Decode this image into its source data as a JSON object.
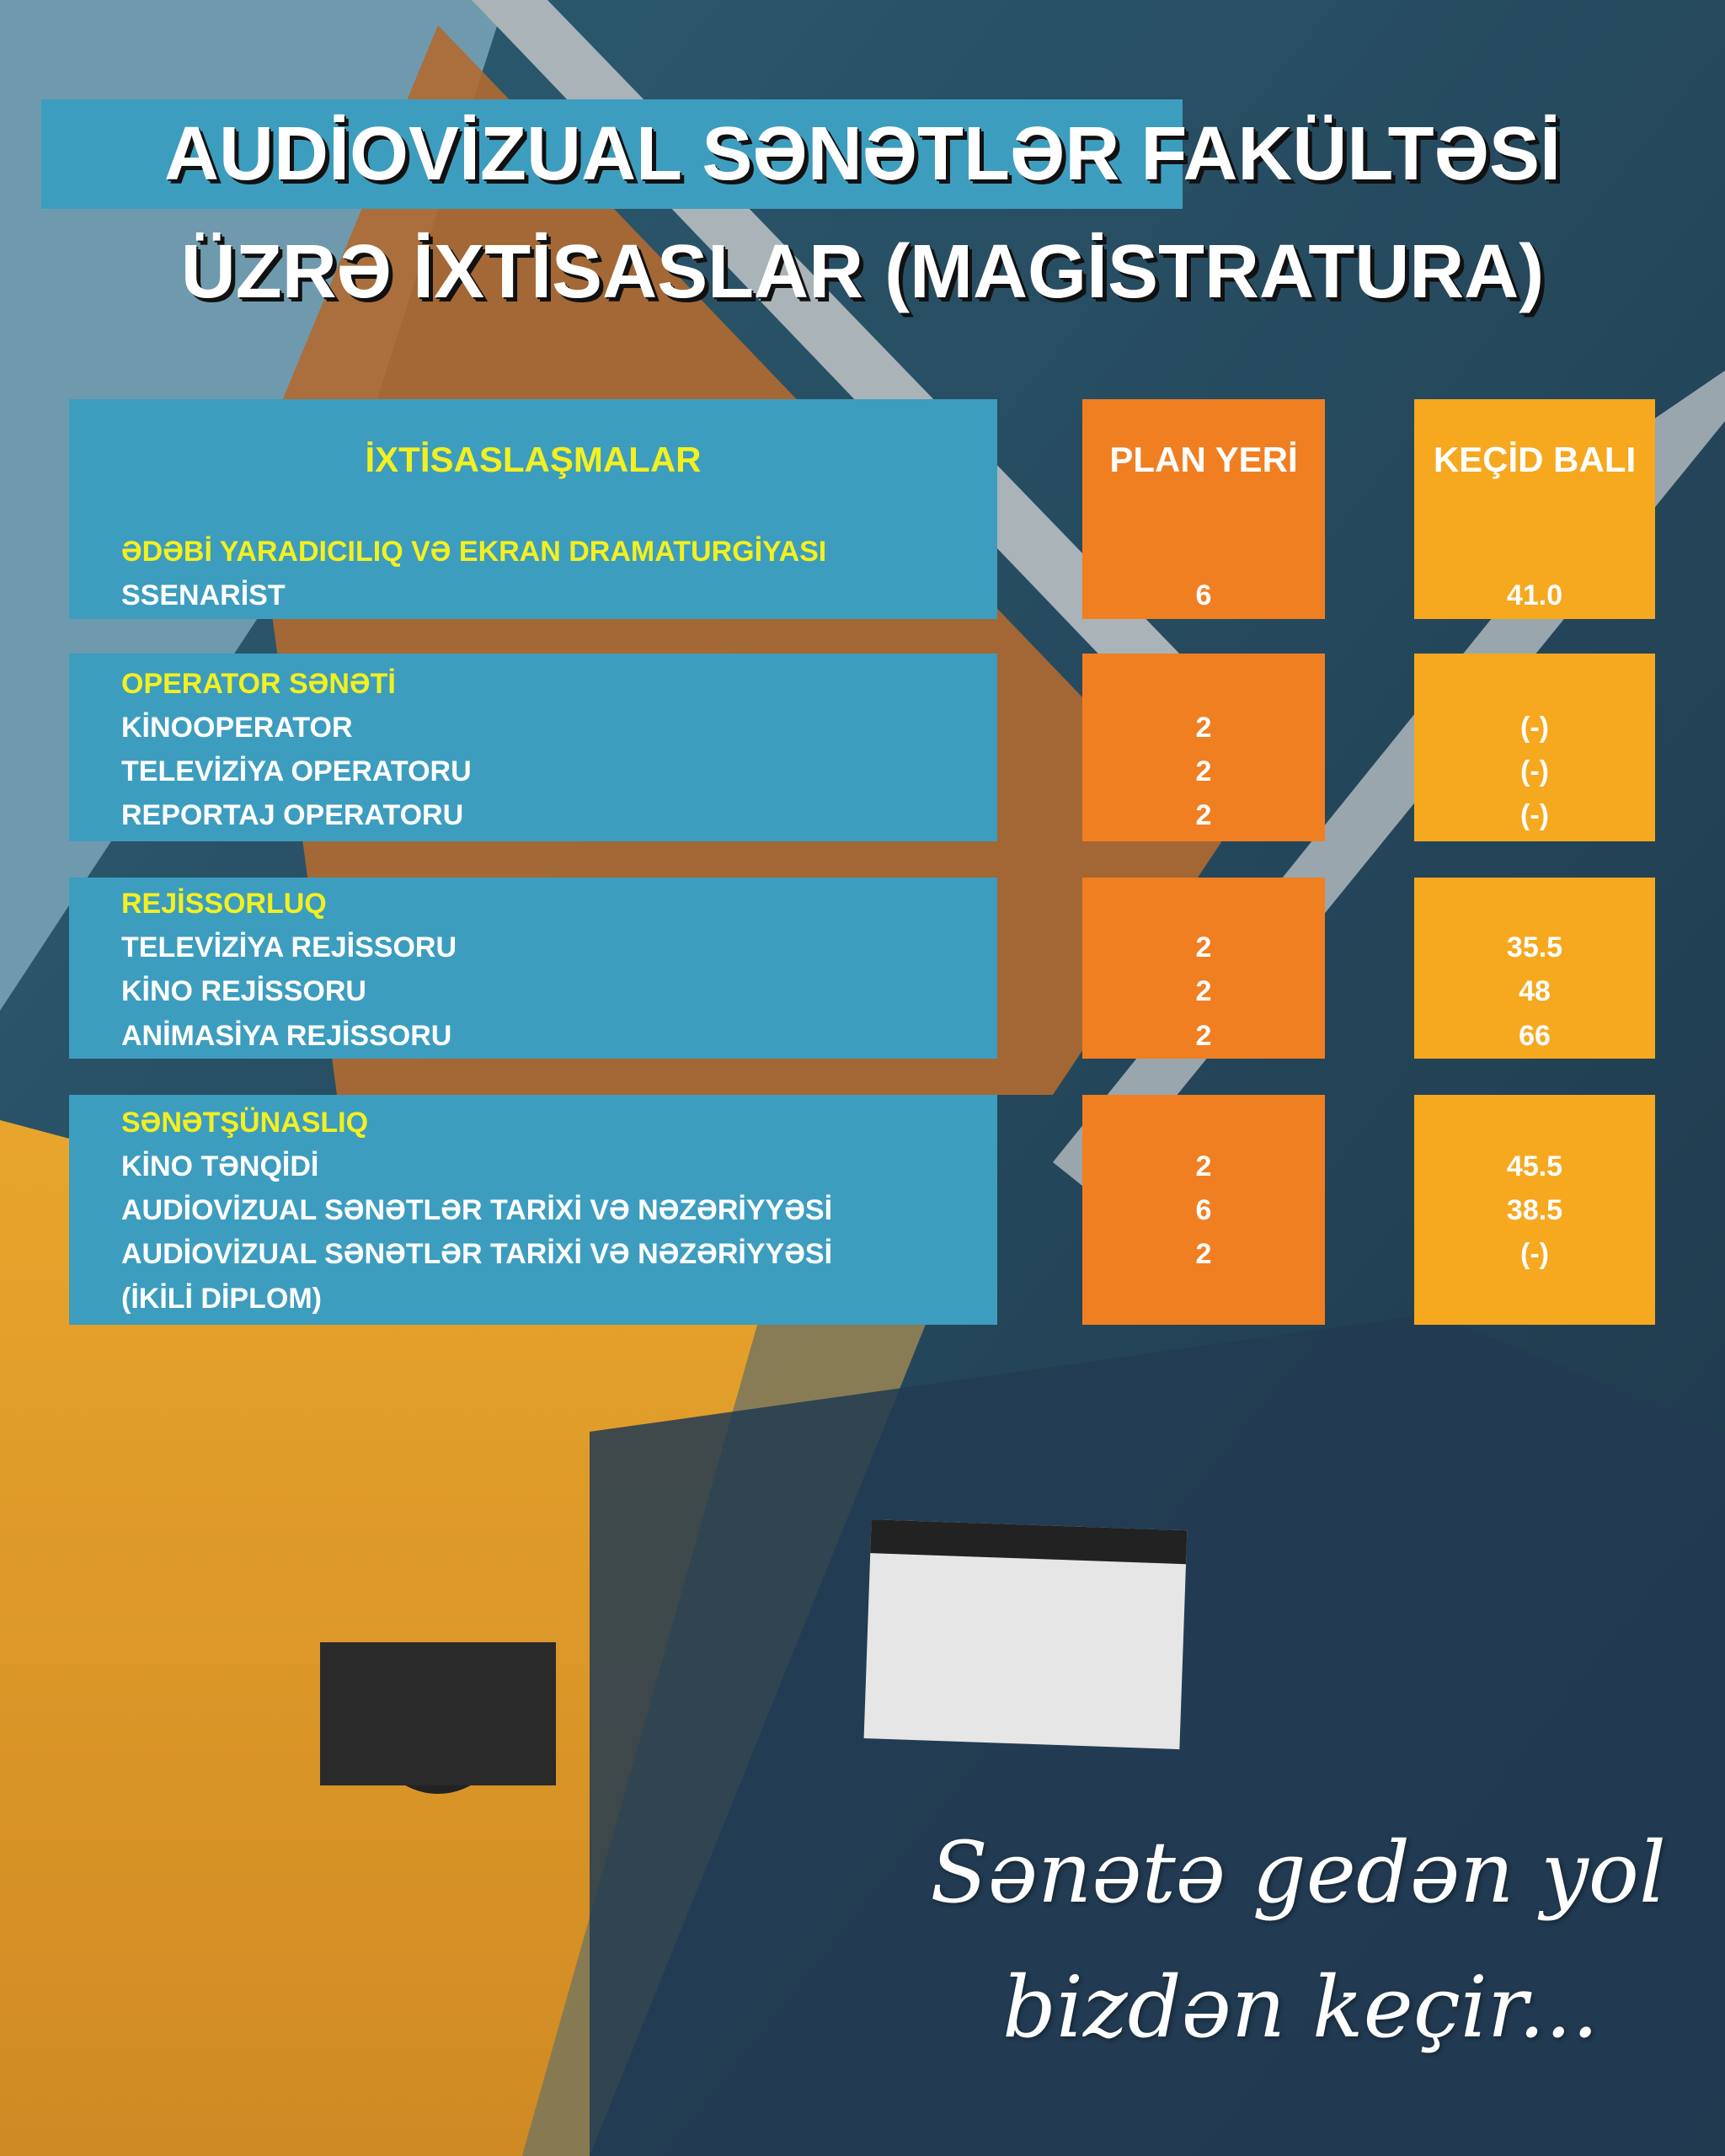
{
  "title": {
    "line1_highlighted": "AUDİOVİZUAL SƏNƏTLƏR",
    "line1_rest": "FAKÜLTƏSİ",
    "line2": "ÜZRƏ İXTİSASLAR (MAGİSTRATURA)"
  },
  "table": {
    "headers": {
      "specialization": "İXTİSASLAŞMALAR",
      "plan": "PLAN YERİ",
      "score": "KEÇİD BALI"
    },
    "groups": [
      {
        "title": "ƏDƏBİ YARADICILIQ VƏ EKRAN DRAMATURGİYASI",
        "rows": [
          {
            "label": "SSENARİST",
            "plan": "6",
            "score": "41.0"
          }
        ]
      },
      {
        "title": "OPERATOR SƏNƏTİ",
        "rows": [
          {
            "label": "KİNOOPERATOR",
            "plan": "2",
            "score": "(-)"
          },
          {
            "label": "TELEVİZİYA OPERATORU",
            "plan": "2",
            "score": "(-)"
          },
          {
            "label": "REPORTAJ OPERATORU",
            "plan": "2",
            "score": "(-)"
          }
        ]
      },
      {
        "title": "REJİSSORLUQ",
        "rows": [
          {
            "label": "TELEVİZİYA REJİSSORU",
            "plan": "2",
            "score": "35.5"
          },
          {
            "label": "KİNO REJİSSORU",
            "plan": "2",
            "score": "48"
          },
          {
            "label": "ANİMASİYA REJİSSORU",
            "plan": "2",
            "score": "66"
          }
        ]
      },
      {
        "title": "SƏNƏTŞÜNASLIQ",
        "rows": [
          {
            "label": "KİNO TƏNQİDİ",
            "plan": "2",
            "score": "45.5"
          },
          {
            "label": "AUDİOVİZUAL SƏNƏTLƏR TARİXİ VƏ NƏZƏRİYYƏSİ",
            "plan": "6",
            "score": "38.5"
          },
          {
            "label": "AUDİOVİZUAL SƏNƏTLƏR TARİXİ VƏ NƏZƏRİYYƏSİ",
            "label2": "(İKİLİ DİPLOM)",
            "plan": "2",
            "score": "(-)"
          }
        ]
      }
    ]
  },
  "slogan": {
    "line1": "Sənətə gedən yol",
    "line2": "bizdən keçir..."
  },
  "colors": {
    "blue": "#3d9dbf",
    "plan": "#f07f22",
    "score": "#f6a81f",
    "heading": "#f3f021"
  }
}
